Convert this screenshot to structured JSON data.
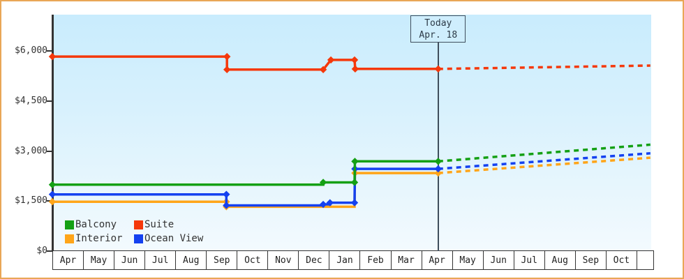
{
  "frame": {
    "border_color": "#e9a757",
    "plot_background_top": "#c9ecfd",
    "plot_background_bottom": "#f3fafe",
    "axis_color": "#333333",
    "today_line_color": "#3f4e5c"
  },
  "legend": {
    "rows": [
      [
        {
          "label": "Balcony",
          "color": "#14a014"
        },
        {
          "label": "Suite",
          "color": "#f5380b"
        }
      ],
      [
        {
          "label": "Interior",
          "color": "#ffa519"
        },
        {
          "label": "Ocean View",
          "color": "#1441f0"
        }
      ]
    ]
  },
  "chart_data": {
    "type": "line",
    "x_axis": {
      "unit": "month",
      "labels": [
        "Apr",
        "May",
        "Jun",
        "Jul",
        "Aug",
        "Sep",
        "Oct",
        "Nov",
        "Dec",
        "Jan",
        "Feb",
        "Mar",
        "Apr",
        "May",
        "Jun",
        "Jul",
        "Aug",
        "Sep",
        "Oct"
      ],
      "trailing_empty_cell": true
    },
    "y_axis": {
      "min": 0,
      "max": 6000,
      "tick_step": 1500,
      "tick_labels": [
        "$0",
        "$1,500",
        "$3,000",
        "$4,500",
        "$6,000"
      ],
      "currency": "USD"
    },
    "today_marker": {
      "label_line1": "Today",
      "label_line2": "Apr. 18",
      "month_index": 12.55
    },
    "draw_order": [
      "Interior",
      "Ocean View",
      "Balcony",
      "Suite"
    ],
    "series": [
      {
        "name": "Suite",
        "color": "#f5380b",
        "solid": [
          [
            0,
            5830
          ],
          [
            5.68,
            5830
          ],
          [
            5.68,
            5440
          ],
          [
            8.81,
            5440
          ],
          [
            9.06,
            5730
          ],
          [
            9.83,
            5730
          ],
          [
            9.85,
            5460
          ],
          [
            12.55,
            5460
          ]
        ],
        "forecast": [
          [
            12.55,
            5460
          ],
          [
            19.45,
            5560
          ]
        ],
        "markers": [
          [
            0,
            5830
          ],
          [
            5.68,
            5830
          ],
          [
            5.68,
            5440
          ],
          [
            8.81,
            5440
          ],
          [
            9.06,
            5730
          ],
          [
            9.83,
            5730
          ],
          [
            9.85,
            5460
          ],
          [
            12.55,
            5460
          ]
        ]
      },
      {
        "name": "Balcony",
        "color": "#14a014",
        "solid": [
          [
            0,
            1990
          ],
          [
            8.81,
            1990
          ],
          [
            8.81,
            2060
          ],
          [
            9.83,
            2060
          ],
          [
            9.84,
            2690
          ],
          [
            12.55,
            2690
          ]
        ],
        "forecast": [
          [
            12.55,
            2690
          ],
          [
            19.45,
            3190
          ]
        ],
        "markers": [
          [
            0,
            1990
          ],
          [
            8.81,
            2060
          ],
          [
            9.83,
            2060
          ],
          [
            9.84,
            2690
          ],
          [
            12.55,
            2690
          ]
        ]
      },
      {
        "name": "Ocean View",
        "color": "#1441f0",
        "solid": [
          [
            0,
            1700
          ],
          [
            5.66,
            1700
          ],
          [
            5.66,
            1370
          ],
          [
            8.81,
            1370
          ],
          [
            8.81,
            1400
          ],
          [
            9.03,
            1400
          ],
          [
            9.03,
            1450
          ],
          [
            9.83,
            1450
          ],
          [
            9.84,
            2465
          ],
          [
            12.55,
            2465
          ]
        ],
        "forecast": [
          [
            12.55,
            2465
          ],
          [
            19.45,
            2930
          ]
        ],
        "markers": [
          [
            0,
            1700
          ],
          [
            5.66,
            1700
          ],
          [
            5.66,
            1370
          ],
          [
            8.81,
            1400
          ],
          [
            9.03,
            1450
          ],
          [
            9.83,
            1450
          ],
          [
            9.84,
            2465
          ],
          [
            12.55,
            2465
          ]
        ]
      },
      {
        "name": "Interior",
        "color": "#ffa519",
        "solid": [
          [
            0,
            1480
          ],
          [
            5.66,
            1480
          ],
          [
            5.66,
            1330
          ],
          [
            9.83,
            1330
          ],
          [
            9.84,
            2340
          ],
          [
            12.55,
            2340
          ]
        ],
        "forecast": [
          [
            12.55,
            2340
          ],
          [
            19.45,
            2800
          ]
        ],
        "markers": [
          [
            0,
            1480
          ],
          [
            5.66,
            1480
          ],
          [
            5.66,
            1330
          ],
          [
            9.84,
            2340
          ],
          [
            12.55,
            2340
          ]
        ]
      }
    ]
  }
}
